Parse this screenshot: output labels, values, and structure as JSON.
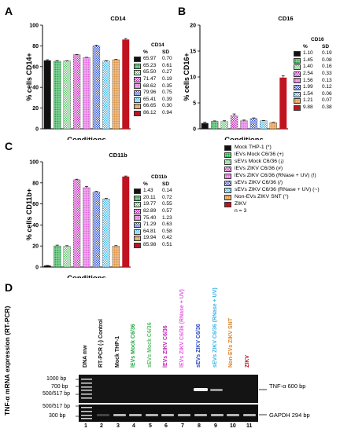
{
  "colors": {
    "mock_thp1": "#111111",
    "ievs_mock": "#1aa640",
    "sevs_mock": "#5bbf6a",
    "ievs_zikv": "#c21fb6",
    "ievs_zikv_rnase": "#e35de0",
    "sevs_zikv": "#2b49c8",
    "sevs_zikv_rnase": "#3fb5e6",
    "nonevs": "#d9862e",
    "zikv": "#c1121f"
  },
  "panels": {
    "A": {
      "letter": "A",
      "title": "CD14",
      "ylabel": "% cells CD14+",
      "xlabel": "Conditions",
      "table_title": "CD14",
      "col_pct": "%",
      "col_sd": "SD",
      "rows": [
        [
          "65.97",
          "0.70"
        ],
        [
          "65.23",
          "0.61"
        ],
        [
          "65.50",
          "0.27"
        ],
        [
          "71.47",
          "0.19"
        ],
        [
          "68.62",
          "0.35"
        ],
        [
          "79.96",
          "0.75"
        ],
        [
          "65.41",
          "0.39"
        ],
        [
          "66.65",
          "0.30"
        ],
        [
          "86.12",
          "0.94"
        ]
      ]
    },
    "B": {
      "letter": "B",
      "title": "CD16",
      "ylabel": "% cells CD16+",
      "xlabel": "Conditions",
      "table_title": "CD16",
      "col_pct": "%",
      "col_sd": "SD",
      "rows": [
        [
          "1.10",
          "0.19"
        ],
        [
          "1.45",
          "0.08"
        ],
        [
          "1.40",
          "0.16"
        ],
        [
          "2.54",
          "0.33"
        ],
        [
          "1.56",
          "0.13"
        ],
        [
          "1.99",
          "0.12"
        ],
        [
          "1.54",
          "0.06"
        ],
        [
          "1.21",
          "0.07"
        ],
        [
          "9.88",
          "0.38"
        ]
      ]
    },
    "C": {
      "letter": "C",
      "title": "CD11b",
      "ylabel": "% cells CD11b+",
      "xlabel": "Conditions",
      "table_title": "CD11b",
      "col_pct": "%",
      "col_sd": "SD",
      "rows": [
        [
          "1.43",
          "0.14"
        ],
        [
          "20.11",
          "0.72"
        ],
        [
          "19.77",
          "0.55"
        ],
        [
          "82.89",
          "0.57"
        ],
        [
          "75.40",
          "1.23"
        ],
        [
          "71.29",
          "0.63"
        ],
        [
          "64.81",
          "0.58"
        ],
        [
          "19.94",
          "0.42"
        ],
        [
          "85.98",
          "0.51"
        ]
      ]
    }
  },
  "legend": {
    "items": [
      "Mock THP-1 (*)",
      "lEVs Mock C6/36 (+)",
      "sEVs Mock C6/36 (¡)",
      "lEVs ZIKV C6/36 (#)",
      "lEVs ZIKV C6/36 (RNase + UV) (!)",
      "sEVs ZIKV C6/36 (/)",
      "sEVs ZIKV C6/36 (RNase + UV) (~)",
      "Non-EVs ZIKV SNT (°)",
      "ZIKV"
    ],
    "n": "n = 3"
  },
  "gel": {
    "letter": "D",
    "ylabel": "TNF-α mRNA expression (RT-PCR)",
    "lanes": [
      "DNA mw",
      "RT-PCR (-) Control",
      "Mock THP-1",
      "lEVs Mock C6/36",
      "sEVs Mock C6/36",
      "lEVs ZIKV C6/36",
      "lEVs ZIKV C6/36 (RNase + UV)",
      "sEVs ZIKV C6/36",
      "sEVs ZIKV C6/36 (RNase + UV)",
      "Non-EVs ZIKV SNT",
      "ZIKV"
    ],
    "lane_numbers": [
      "1",
      "2",
      "3",
      "4",
      "5",
      "6",
      "7",
      "8",
      "9",
      "10",
      "11"
    ],
    "markers_top": [
      "1000 bp",
      "700 bp",
      "500/517 bp"
    ],
    "markers_bottom": [
      "500/517 bp",
      "300 bp"
    ],
    "band_top": "TNF-α 600 bp",
    "band_bottom": "GAPDH 294 bp"
  },
  "chart_data": [
    {
      "type": "bar",
      "title": "CD14",
      "ylabel": "% cells CD14+",
      "xlabel": "Conditions",
      "ylim": [
        0,
        100
      ],
      "yticks": [
        0,
        20,
        40,
        60,
        80,
        100
      ],
      "categories": [
        "Mock THP-1",
        "lEVs Mock C6/36",
        "sEVs Mock C6/36",
        "lEVs ZIKV C6/36",
        "lEVs ZIKV C6/36 (RNase + UV)",
        "sEVs ZIKV C6/36",
        "sEVs ZIKV C6/36 (RNase + UV)",
        "Non-EVs ZIKV SNT",
        "ZIKV"
      ],
      "values": [
        65.97,
        65.23,
        65.5,
        71.47,
        68.62,
        79.96,
        65.41,
        66.65,
        86.12
      ],
      "sd": [
        0.7,
        0.61,
        0.27,
        0.19,
        0.35,
        0.75,
        0.39,
        0.3,
        0.94
      ]
    },
    {
      "type": "bar",
      "title": "CD16",
      "ylabel": "% cells CD16+",
      "xlabel": "Conditions",
      "ylim": [
        0,
        20
      ],
      "yticks": [
        0,
        5,
        10,
        15,
        20
      ],
      "categories": [
        "Mock THP-1",
        "lEVs Mock C6/36",
        "sEVs Mock C6/36",
        "lEVs ZIKV C6/36",
        "lEVs ZIKV C6/36 (RNase + UV)",
        "sEVs ZIKV C6/36",
        "sEVs ZIKV C6/36 (RNase + UV)",
        "Non-EVs ZIKV SNT",
        "ZIKV"
      ],
      "values": [
        1.1,
        1.45,
        1.4,
        2.54,
        1.56,
        1.99,
        1.54,
        1.21,
        9.88
      ],
      "sd": [
        0.19,
        0.08,
        0.16,
        0.33,
        0.13,
        0.12,
        0.06,
        0.07,
        0.38
      ]
    },
    {
      "type": "bar",
      "title": "CD11b",
      "ylabel": "% cells CD11b+",
      "xlabel": "Conditions",
      "ylim": [
        0,
        100
      ],
      "yticks": [
        0,
        20,
        40,
        60,
        80,
        100
      ],
      "categories": [
        "Mock THP-1",
        "lEVs Mock C6/36",
        "sEVs Mock C6/36",
        "lEVs ZIKV C6/36",
        "lEVs ZIKV C6/36 (RNase + UV)",
        "sEVs ZIKV C6/36",
        "sEVs ZIKV C6/36 (RNase + UV)",
        "Non-EVs ZIKV SNT",
        "ZIKV"
      ],
      "values": [
        1.43,
        20.11,
        19.77,
        82.89,
        75.4,
        71.29,
        64.81,
        19.94,
        85.98
      ],
      "sd": [
        0.14,
        0.72,
        0.55,
        0.57,
        1.23,
        0.63,
        0.58,
        0.42,
        0.51
      ]
    }
  ]
}
